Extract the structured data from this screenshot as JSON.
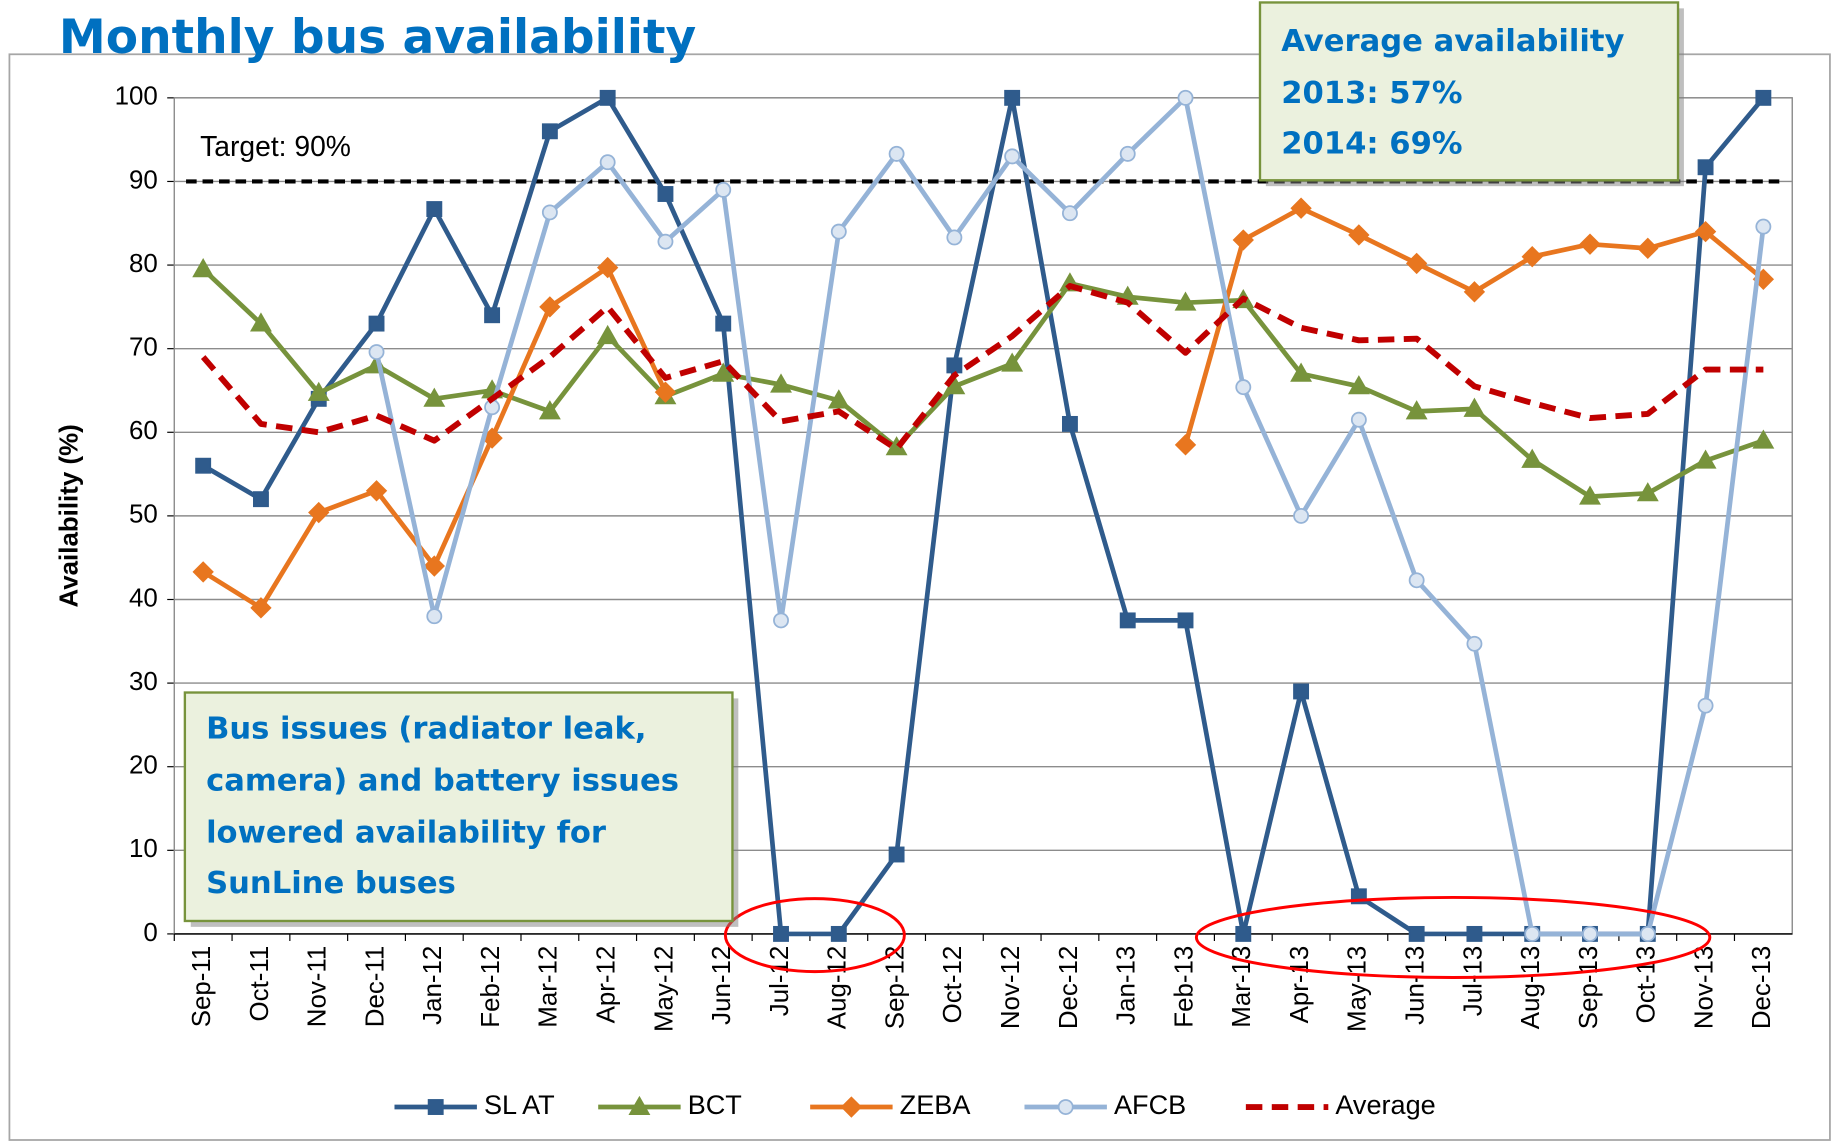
{
  "chart_data": {
    "type": "line",
    "title": "Monthly bus availability",
    "y_label": "Availability (%)",
    "categories": [
      "Sep-11",
      "Oct-11",
      "Nov-11",
      "Dec-11",
      "Jan-12",
      "Feb-12",
      "Mar-12",
      "Apr-12",
      "May-12",
      "Jun-12",
      "Jul-12",
      "Aug-12",
      "Sep-12",
      "Oct-12",
      "Nov-12",
      "Dec-12",
      "Jan-13",
      "Feb-13",
      "Mar-13",
      "Apr-13",
      "May-13",
      "Jun-13",
      "Jul-13",
      "Aug-13",
      "Sep-13",
      "Oct-13",
      "Nov-13",
      "Dec-13"
    ],
    "series": [
      {
        "name": "SL AT",
        "color": "#2f5b8c",
        "marker": "square",
        "dashed": false,
        "values": [
          56,
          52,
          64,
          73,
          86.7,
          74,
          96,
          100,
          88.5,
          73,
          0,
          0,
          9.5,
          68,
          100,
          61,
          37.5,
          37.5,
          0,
          29,
          4.5,
          0,
          0,
          0,
          0,
          0,
          91.7,
          100
        ]
      },
      {
        "name": "BCT",
        "color": "#77933c",
        "marker": "triangle",
        "dashed": false,
        "values": [
          79.5,
          73,
          64.7,
          68,
          64,
          65,
          62.5,
          71.5,
          64.3,
          67,
          65.7,
          63.8,
          58.2,
          65.5,
          68.2,
          77.8,
          76.2,
          75.5,
          75.8,
          67,
          65.5,
          62.5,
          62.8,
          56.7,
          52.3,
          52.7,
          56.6,
          59
        ]
      },
      {
        "name": "ZEBA",
        "color": "#e8761f",
        "marker": "diamond",
        "dashed": false,
        "values": [
          43.3,
          39,
          50.4,
          53,
          44,
          59.3,
          75,
          79.7,
          64.8,
          null,
          null,
          null,
          null,
          null,
          null,
          null,
          null,
          58.5,
          83,
          86.8,
          83.6,
          80.2,
          76.8,
          81,
          82.5,
          82,
          84,
          78.3
        ]
      },
      {
        "name": "AFCB",
        "color": "#95b3d7",
        "marker": "circle",
        "dashed": false,
        "values": [
          null,
          null,
          null,
          69.6,
          38,
          63,
          86.3,
          92.3,
          82.8,
          89,
          37.5,
          84,
          93.3,
          83.3,
          93,
          86.2,
          93.3,
          100,
          65.4,
          50,
          61.5,
          42.3,
          34.7,
          0,
          0,
          0,
          27.3,
          84.6
        ]
      },
      {
        "name": "Average",
        "color": "#c00000",
        "marker": "none",
        "dashed": true,
        "values": [
          69,
          61,
          60,
          62,
          59,
          64,
          69,
          75,
          66.5,
          68.5,
          61.3,
          62.5,
          58,
          66.8,
          71.5,
          77.5,
          75.5,
          69.5,
          76,
          72.5,
          71,
          71.2,
          65.5,
          63.5,
          61.7,
          62.2,
          67.5,
          67.5
        ]
      }
    ],
    "ylim": [
      0,
      100
    ],
    "yticks": [
      0,
      10,
      20,
      30,
      40,
      50,
      60,
      70,
      80,
      90,
      100
    ],
    "grid": true,
    "legend": "bottom",
    "target": 90,
    "target_label": "Target: 90%",
    "annotations": [
      {
        "lines": [
          "Average availability",
          "2013: 57%",
          "2014: 69%"
        ]
      },
      {
        "lines": [
          "Bus issues (radiator leak,",
          "camera) and battery issues",
          "lowered availability for",
          "SunLine buses"
        ]
      }
    ]
  }
}
